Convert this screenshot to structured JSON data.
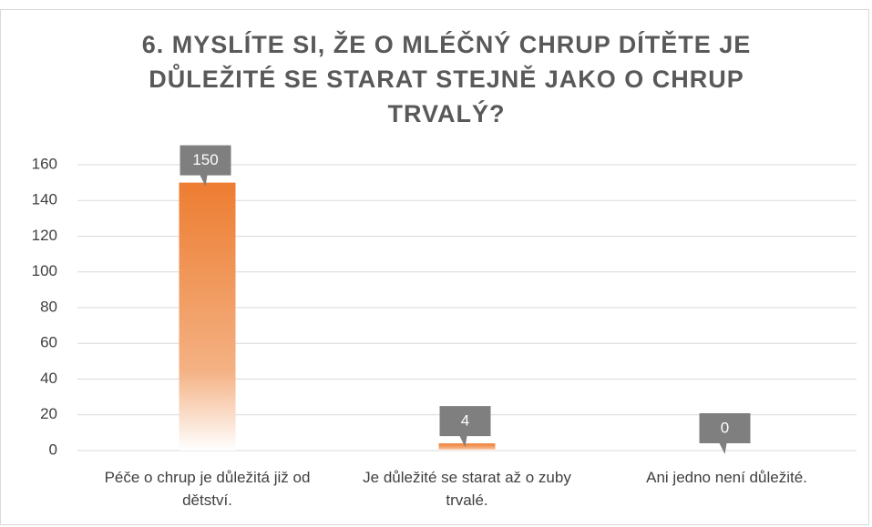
{
  "chart_data": {
    "type": "bar",
    "title": "6. MYSLÍTE SI, ŽE O MLÉČNÝ CHRUP DÍTĚTE JE DŮLEŽITÉ SE STARAT STEJNĚ JAKO O CHRUP TRVALÝ?",
    "categories": [
      "Péče o chrup je důležitá již od dětství.",
      "Je důležité se starat až o zuby trvalé.",
      "Ani jedno není důležité."
    ],
    "values": [
      150,
      4,
      0
    ],
    "color": "#ed7d31",
    "ylim": [
      0,
      160
    ],
    "yticks": [
      0,
      20,
      40,
      60,
      80,
      100,
      120,
      140,
      160
    ],
    "grid": true
  }
}
